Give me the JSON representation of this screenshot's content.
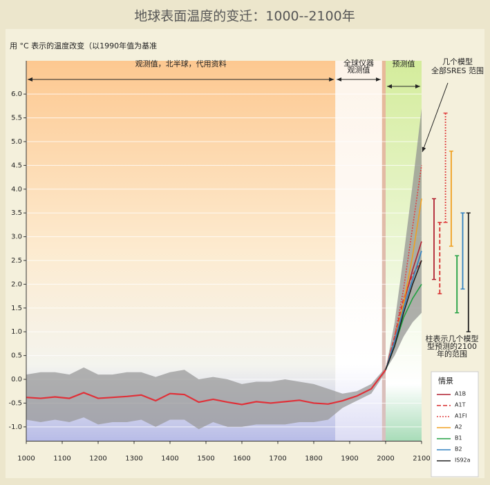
{
  "chart_data": {
    "type": "line",
    "title": "地球表面温度的变迁：1000--2100年",
    "y_label": "用 °C 表示的温度改变（以1990年值为基准",
    "xlim": [
      1000,
      2100
    ],
    "xticks": [
      1000,
      1100,
      1200,
      1300,
      1400,
      1500,
      1600,
      1700,
      1800,
      1900,
      2000,
      2100
    ],
    "ylim": [
      -1.3,
      6.7
    ],
    "yticks": [
      {
        "value": 6,
        "label": "6.0"
      },
      {
        "value": 5.5,
        "label": "5.5"
      },
      {
        "value": 5,
        "label": "5.0"
      },
      {
        "value": 4.5,
        "label": "4.5"
      },
      {
        "value": 4,
        "label": "4.0"
      },
      {
        "value": 3.5,
        "label": "3.5"
      },
      {
        "value": 3,
        "label": "3.0"
      },
      {
        "value": 2.5,
        "label": "2.5"
      },
      {
        "value": 2,
        "label": "2.0"
      },
      {
        "value": 1.5,
        "label": "1.5"
      },
      {
        "value": 1,
        "label": "1.0"
      },
      {
        "value": 0.5,
        "label": "0.5"
      },
      {
        "value": 0,
        "label": "0.0"
      },
      {
        "value": -0.5,
        "label": "-0.5"
      },
      {
        "value": -1,
        "label": "-1.0"
      }
    ],
    "grid": true,
    "periods": [
      {
        "label": [
          "观测值，北半球，代用资料"
        ],
        "start": 1000,
        "end": 1860
      },
      {
        "label": [
          "全球仪器",
          "观测值"
        ],
        "start": 1860,
        "end": 1990
      },
      {
        "label": null,
        "start": 1990,
        "end": 2000
      },
      {
        "label": [
          "预测值"
        ],
        "start": 2000,
        "end": 2100
      }
    ],
    "observed": {
      "color": "#e03038",
      "band_color": "#9a9a9a",
      "x": [
        1000,
        1040,
        1080,
        1120,
        1160,
        1200,
        1240,
        1280,
        1320,
        1360,
        1400,
        1440,
        1480,
        1520,
        1560,
        1600,
        1640,
        1680,
        1720,
        1760,
        1800,
        1840,
        1880,
        1920,
        1960,
        2000
      ],
      "values": [
        -0.38,
        -0.4,
        -0.37,
        -0.4,
        -0.28,
        -0.4,
        -0.38,
        -0.36,
        -0.33,
        -0.45,
        -0.3,
        -0.32,
        -0.48,
        -0.42,
        -0.48,
        -0.53,
        -0.47,
        -0.5,
        -0.47,
        -0.44,
        -0.5,
        -0.52,
        -0.45,
        -0.35,
        -0.2,
        0.2
      ],
      "lower": [
        -0.85,
        -0.9,
        -0.85,
        -0.9,
        -0.8,
        -0.95,
        -0.9,
        -0.9,
        -0.85,
        -1.0,
        -0.85,
        -0.85,
        -1.05,
        -0.9,
        -1.0,
        -1.0,
        -0.95,
        -0.95,
        -0.95,
        -0.9,
        -0.9,
        -0.85,
        -0.6,
        -0.45,
        -0.3,
        0.15
      ],
      "upper": [
        0.1,
        0.15,
        0.15,
        0.1,
        0.25,
        0.1,
        0.1,
        0.15,
        0.15,
        0.05,
        0.15,
        0.2,
        0.0,
        0.05,
        0.0,
        -0.1,
        -0.05,
        -0.05,
        0.0,
        -0.05,
        -0.1,
        -0.2,
        -0.3,
        -0.25,
        -0.1,
        0.25
      ]
    },
    "envelope": {
      "color": "#8f8f8f",
      "x": [
        2000,
        2025,
        2050,
        2075,
        2100
      ],
      "lower": [
        0.2,
        0.5,
        0.9,
        1.2,
        1.4
      ],
      "upper": [
        0.2,
        1.2,
        2.6,
        4.1,
        5.7
      ]
    },
    "scenario_x": [
      2000,
      2025,
      2050,
      2075,
      2100
    ],
    "legend_title": "情景",
    "series": [
      {
        "name": "A1B",
        "color": "#b02030",
        "dash": "solid",
        "values": [
          0.2,
          0.8,
          1.6,
          2.3,
          2.9
        ],
        "range": [
          2.1,
          3.8
        ]
      },
      {
        "name": "A1T",
        "color": "#d83030",
        "dash": "dashed",
        "values": [
          0.2,
          0.9,
          1.7,
          2.2,
          2.5
        ],
        "range": [
          1.8,
          3.3
        ]
      },
      {
        "name": "A1FI",
        "color": "#e04040",
        "dash": "dotted",
        "values": [
          0.2,
          0.9,
          1.9,
          3.2,
          4.5
        ],
        "range": [
          3.3,
          5.6
        ]
      },
      {
        "name": "A2",
        "color": "#f0a020",
        "dash": "solid",
        "values": [
          0.2,
          0.8,
          1.6,
          2.6,
          3.8
        ],
        "range": [
          2.8,
          4.8
        ]
      },
      {
        "name": "B1",
        "color": "#20a040",
        "dash": "solid",
        "values": [
          0.2,
          0.7,
          1.3,
          1.7,
          2.0
        ],
        "range": [
          1.4,
          2.6
        ]
      },
      {
        "name": "B2",
        "color": "#3080c0",
        "dash": "solid",
        "values": [
          0.2,
          0.8,
          1.5,
          2.1,
          2.7
        ],
        "range": [
          1.9,
          3.5
        ]
      },
      {
        "name": "IS92a",
        "color": "#202020",
        "dash": "solid",
        "values": [
          0.2,
          0.7,
          1.4,
          2.0,
          2.5
        ],
        "range": [
          1.0,
          3.5
        ]
      }
    ],
    "annotation_models": [
      "几个模型",
      "全部SRES 范围"
    ],
    "annotation_bars": [
      "柱表示几个模型",
      "型预测的2100",
      "年的范围"
    ]
  }
}
